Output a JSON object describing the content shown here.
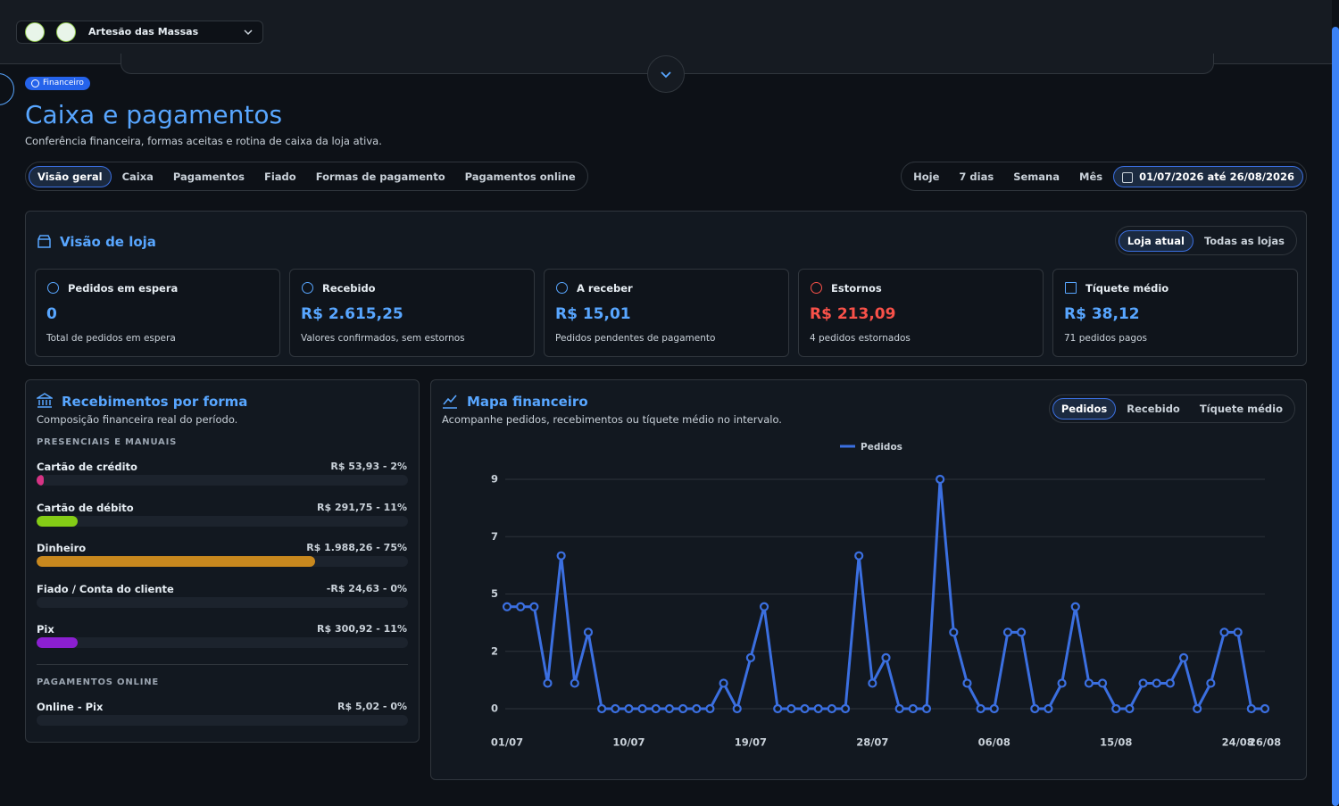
{
  "topbar": {
    "store": "Artesão das Massas"
  },
  "badge": "Financeiro",
  "header": {
    "title": "Caixa e pagamentos",
    "subtitle": "Conferência financeira, formas aceitas e rotina de caixa da loja ativa."
  },
  "tabs": [
    "Visão geral",
    "Caixa",
    "Pagamentos",
    "Fiado",
    "Formas de pagamento",
    "Pagamentos online"
  ],
  "periods": [
    "Hoje",
    "7 dias",
    "Semana",
    "Mês"
  ],
  "date_range": "01/07/2026 até 26/08/2026",
  "store_view": {
    "title": "Visão de loja",
    "toggle": [
      "Loja atual",
      "Todas as lojas"
    ],
    "cards": [
      {
        "label": "Pedidos em espera",
        "value": "0",
        "note": "Total de pedidos em espera",
        "color": "#58a6ff"
      },
      {
        "label": "Recebido",
        "value": "R$ 2.615,25",
        "note": "Valores confirmados, sem estornos",
        "color": "#58a6ff"
      },
      {
        "label": "A receber",
        "value": "R$ 15,01",
        "note": "Pedidos pendentes de pagamento",
        "color": "#58a6ff"
      },
      {
        "label": "Estornos",
        "value": "R$ 213,09",
        "note": "4 pedidos estornados",
        "color": "#f85149"
      },
      {
        "label": "Tíquete médio",
        "value": "R$ 38,12",
        "note": "71 pedidos pagos",
        "color": "#58a6ff"
      }
    ]
  },
  "receipts": {
    "title": "Recebimentos por forma",
    "subtitle": "Composição financeira real do período.",
    "groups": [
      {
        "heading": "PRESENCIAIS E MANUAIS",
        "items": [
          {
            "name": "Cartão de crédito",
            "amount": "R$ 53,93 - 2%",
            "share": 2,
            "color": "#d63384"
          },
          {
            "name": "Cartão de débito",
            "amount": "R$ 291,75 - 11%",
            "share": 11,
            "color": "#84cc16"
          },
          {
            "name": "Dinheiro",
            "amount": "R$ 1.988,26 - 75%",
            "share": 75,
            "color": "#c8881e"
          },
          {
            "name": "Fiado / Conta do cliente",
            "amount": "-R$ 24,63 - 0%",
            "share": 0
          },
          {
            "name": "Pix",
            "amount": "R$ 300,92 - 11%",
            "share": 11,
            "color": "#8b1fd1"
          }
        ]
      },
      {
        "heading": "PAGAMENTOS ONLINE",
        "items": [
          {
            "name": "Online - Pix",
            "amount": "R$ 5,02 - 0%",
            "share": 0
          }
        ]
      }
    ]
  },
  "chart_panel": {
    "toggle": [
      "Pedidos",
      "Recebido",
      "Tíquete médio"
    ]
  },
  "chart_data": {
    "type": "line",
    "title": "Mapa financeiro",
    "subtitle": "Acompanhe pedidos, recebimentos ou tíquete médio no intervalo.",
    "categories": [
      "01/07",
      null,
      null,
      null,
      null,
      null,
      null,
      null,
      null,
      "10/07",
      null,
      null,
      null,
      null,
      null,
      null,
      null,
      null,
      "19/07",
      null,
      null,
      null,
      null,
      null,
      null,
      null,
      null,
      "28/07",
      null,
      null,
      null,
      null,
      null,
      null,
      null,
      null,
      "06/08",
      null,
      null,
      null,
      null,
      null,
      null,
      null,
      null,
      "15/08",
      null,
      null,
      null,
      null,
      null,
      null,
      null,
      null,
      "24/08",
      null,
      "26/08"
    ],
    "series": [
      {
        "name": "Pedidos",
        "color": "#3b6fe0",
        "values": [
          4,
          4,
          4,
          1,
          6,
          1,
          3,
          0,
          0,
          0,
          0,
          0,
          0,
          0,
          0,
          0,
          1,
          0,
          2,
          4,
          0,
          0,
          0,
          0,
          0,
          0,
          6,
          1,
          2,
          0,
          0,
          0,
          9,
          3,
          1,
          0,
          0,
          3,
          3,
          0,
          0,
          1,
          4,
          1,
          1,
          0,
          0,
          1,
          1,
          1,
          2,
          0,
          1,
          3,
          3,
          0,
          0
        ]
      }
    ],
    "ylim": [
      0,
      9
    ],
    "yticks": [
      0,
      {
        "value": 2.25,
        "label": "2"
      },
      {
        "value": 4.5,
        "label": "5"
      },
      {
        "value": 6.75,
        "label": "7"
      },
      9
    ],
    "grid": true,
    "legend": "top"
  }
}
